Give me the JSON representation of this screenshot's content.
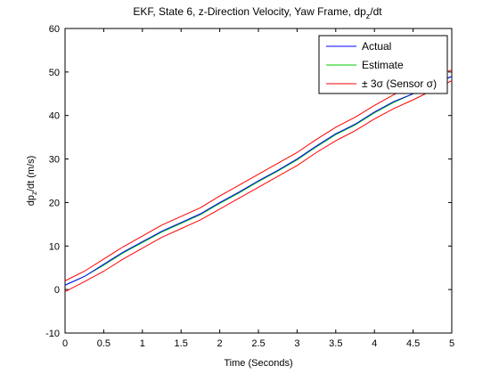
{
  "chart_data": {
    "type": "line",
    "title": "EKF, State 6, z-Direction Velocity, Yaw Frame, dp",
    "title_sub": "z",
    "title_tail": "/dt",
    "xlabel": "Time (Seconds)",
    "ylabel": "dp",
    "ylabel_sub": "z",
    "ylabel_tail": "/dt (m/s)",
    "xlim": [
      0,
      5
    ],
    "ylim": [
      -10,
      60
    ],
    "xticks": [
      "0",
      "0.5",
      "1",
      "1.5",
      "2",
      "2.5",
      "3",
      "3.5",
      "4",
      "4.5",
      "5"
    ],
    "yticks": [
      "-10",
      "0",
      "10",
      "20",
      "30",
      "40",
      "50",
      "60"
    ],
    "grid": false,
    "legend_position": "top-right",
    "x": [
      0,
      0.25,
      0.5,
      0.75,
      1.0,
      1.25,
      1.5,
      1.75,
      2.0,
      2.25,
      2.5,
      2.75,
      3.0,
      3.25,
      3.5,
      3.75,
      4.0,
      4.25,
      4.5,
      4.75,
      5.0
    ],
    "series": [
      {
        "name": "Actual",
        "color": "#0000ff",
        "values": [
          1.0,
          3.0,
          5.8,
          8.6,
          11.0,
          13.4,
          15.4,
          17.4,
          20.0,
          22.4,
          25.0,
          27.4,
          30.0,
          33.0,
          35.8,
          38.0,
          40.8,
          43.2,
          45.0,
          47.0,
          49.0
        ]
      },
      {
        "name": "Estimate",
        "color": "#00cc00",
        "values": [
          1.0,
          3.0,
          5.6,
          8.4,
          10.8,
          13.2,
          15.2,
          17.2,
          19.8,
          22.2,
          24.8,
          27.2,
          29.8,
          32.8,
          35.6,
          37.8,
          40.6,
          43.0,
          45.0,
          47.0,
          49.0
        ]
      },
      {
        "name": "± 3σ (Sensor σ)",
        "color": "#ff0000",
        "values": [
          2.0,
          4.2,
          7.0,
          9.8,
          12.3,
          14.8,
          16.8,
          18.8,
          21.5,
          24.0,
          26.5,
          29.0,
          31.5,
          34.5,
          37.3,
          39.6,
          42.3,
          44.8,
          46.8,
          48.8,
          50.5
        ]
      },
      {
        "name": "",
        "color": "#ff0000",
        "values": [
          -0.5,
          1.8,
          4.2,
          7.0,
          9.5,
          12.0,
          14.0,
          16.0,
          18.5,
          21.0,
          23.5,
          26.0,
          28.5,
          31.5,
          34.2,
          36.5,
          39.2,
          41.6,
          43.6,
          45.8,
          48.0
        ]
      }
    ]
  }
}
